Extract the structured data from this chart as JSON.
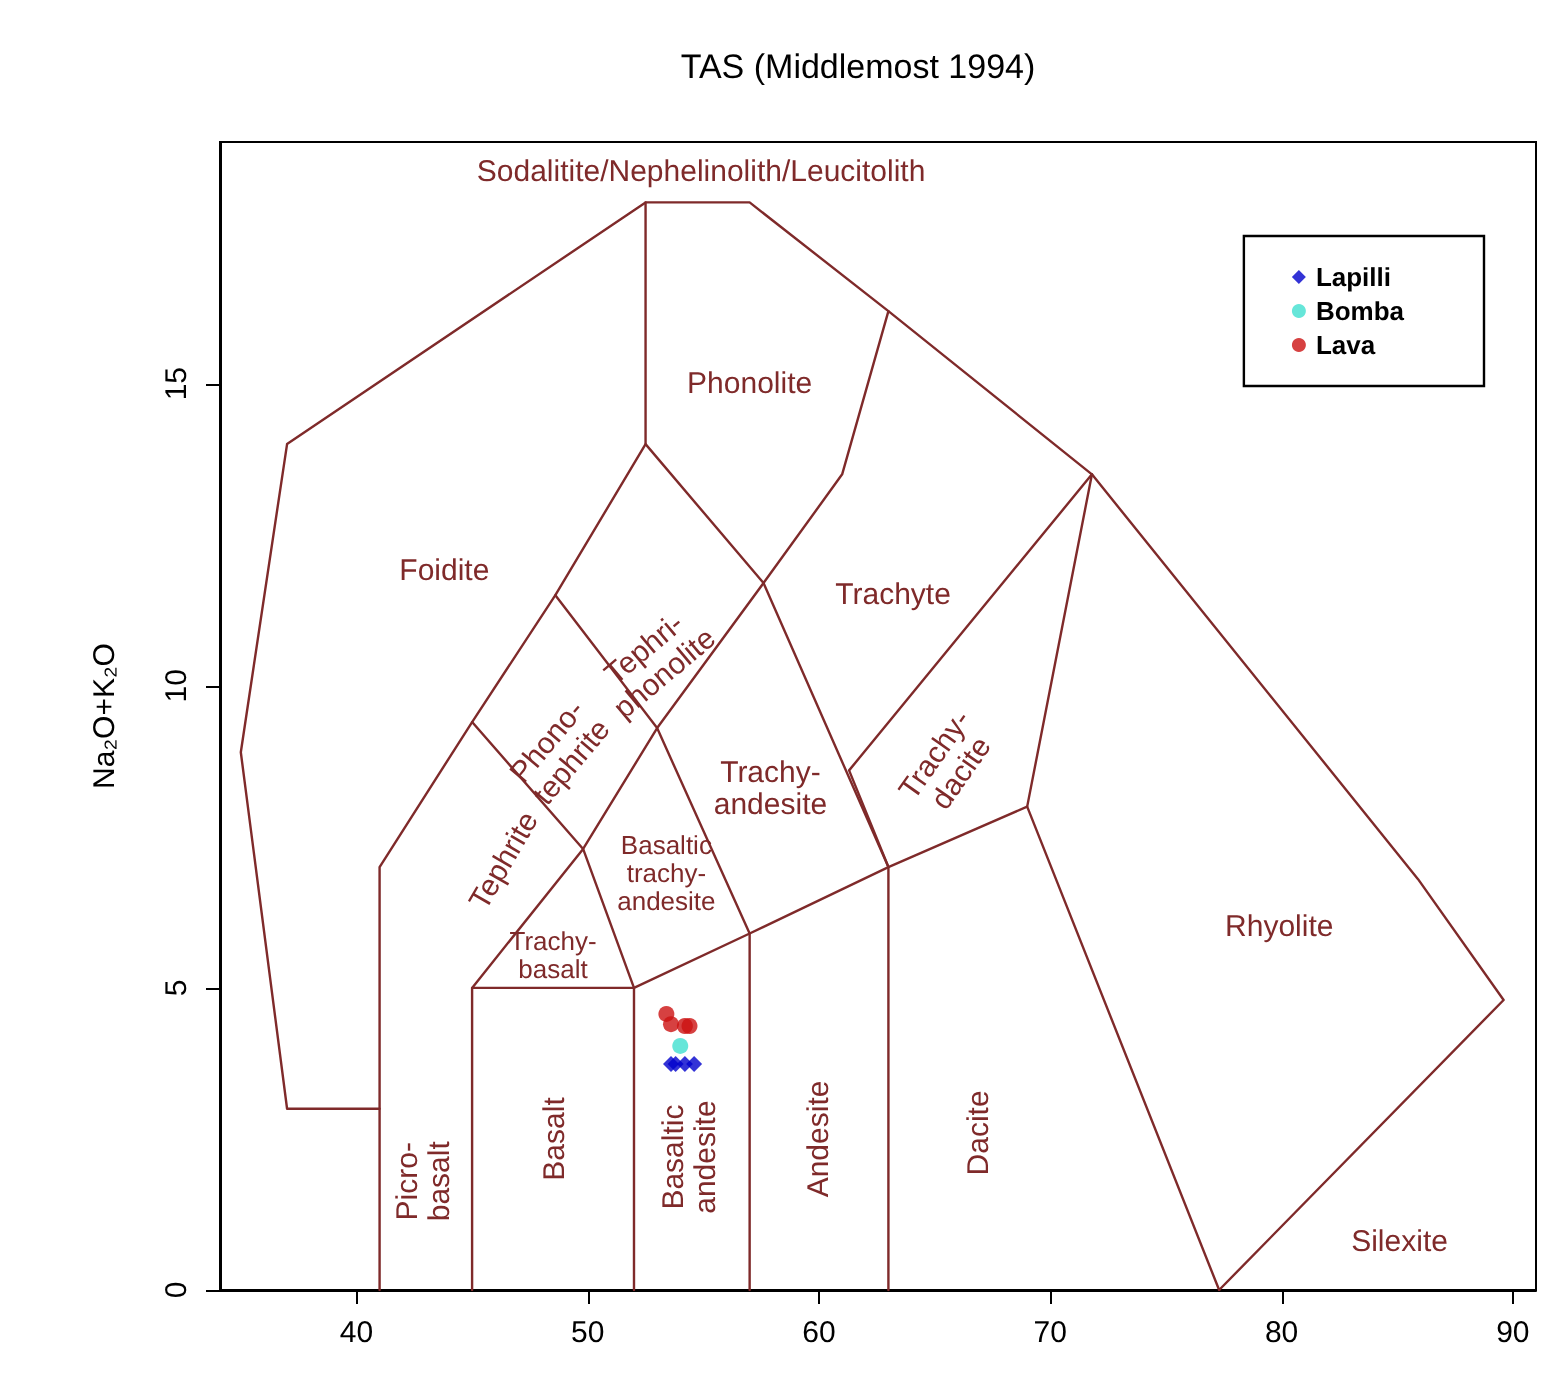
{
  "chart_data": {
    "type": "scatter",
    "title": "TAS (Middlemost 1994)",
    "ylabel": "Na₂O+K₂O",
    "xlim": [
      34.1,
      91
    ],
    "ylim": [
      0,
      19
    ],
    "xticks": [
      40,
      50,
      60,
      70,
      80,
      90
    ],
    "yticks": [
      0,
      5,
      10,
      15
    ],
    "grid": false,
    "legend": "top right",
    "series": [
      {
        "type": "line",
        "color": "#7f2a2a",
        "marker": "none",
        "line_style": "solid",
        "x": [
          41,
          37,
          35,
          37,
          52.5,
          57,
          63,
          71.8,
          85.9,
          89.6,
          77.3
        ],
        "values": [
          3,
          3,
          8.9,
          14,
          18,
          18,
          16.2,
          13.5,
          6.8,
          4.8,
          0
        ]
      },
      {
        "type": "line",
        "color": "#7f2a2a",
        "marker": "none",
        "line_style": "solid",
        "x": [
          52.5,
          52.5,
          48.6,
          45,
          41,
          41
        ],
        "values": [
          18,
          14,
          11.5,
          9.4,
          7,
          0
        ]
      },
      {
        "type": "line",
        "color": "#7f2a2a",
        "marker": "none",
        "line_style": "solid",
        "x": [
          52.5,
          57.6,
          61,
          63
        ],
        "values": [
          14,
          11.7,
          13.5,
          16.2
        ]
      },
      {
        "type": "line",
        "color": "#7f2a2a",
        "marker": "none",
        "line_style": "solid",
        "x": [
          48.6,
          53,
          57.6
        ],
        "values": [
          11.5,
          9.3,
          11.7
        ]
      },
      {
        "type": "line",
        "color": "#7f2a2a",
        "marker": "none",
        "line_style": "solid",
        "x": [
          45,
          49.8,
          53,
          57,
          57
        ],
        "values": [
          9.4,
          7.3,
          9.3,
          5.9,
          0
        ]
      },
      {
        "type": "line",
        "color": "#7f2a2a",
        "marker": "none",
        "line_style": "solid",
        "x": [
          45,
          45,
          49.8,
          52,
          52
        ],
        "values": [
          0,
          5,
          7.3,
          5,
          0
        ]
      },
      {
        "type": "line",
        "color": "#7f2a2a",
        "marker": "none",
        "line_style": "solid",
        "x": [
          45,
          52,
          57,
          63,
          69,
          77.3
        ],
        "values": [
          5,
          5,
          5.9,
          7,
          8,
          0
        ]
      },
      {
        "type": "line",
        "color": "#7f2a2a",
        "marker": "none",
        "line_style": "solid",
        "x": [
          63,
          63,
          57.6
        ],
        "values": [
          0,
          7,
          11.7
        ]
      },
      {
        "type": "line",
        "color": "#7f2a2a",
        "marker": "none",
        "line_style": "solid",
        "x": [
          63,
          61.3,
          71.8
        ],
        "values": [
          7,
          8.6,
          13.5
        ]
      },
      {
        "type": "line",
        "color": "#7f2a2a",
        "marker": "none",
        "line_style": "solid",
        "x": [
          71.8,
          69
        ],
        "values": [
          13.5,
          8
        ]
      },
      {
        "name": "Lapilli",
        "color": "#0000cc",
        "marker": "diamond",
        "x": [
          53.6,
          53.8,
          54.2,
          54.6
        ],
        "values": [
          3.74,
          3.74,
          3.74,
          3.74
        ]
      },
      {
        "name": "Bomba",
        "color": "#40e0d0",
        "marker": "circle",
        "x": [
          54.0
        ],
        "values": [
          4.04
        ]
      },
      {
        "name": "Lava",
        "color": "#cc1111",
        "marker": "circle",
        "x": [
          53.4,
          53.6,
          54.2,
          54.4
        ],
        "values": [
          4.57,
          4.4,
          4.37,
          4.37
        ]
      }
    ],
    "annotations": [
      "Sodalitite/Nephelinolith/Leucitolith",
      "Phonolite",
      "Foidite",
      "Tephri-\nphonolite",
      "Trachyte",
      "Phono-\ntephrite",
      "Trachy-\nandesite",
      "Trachy-\ndacite",
      "Tephrite",
      "Basaltic\ntrachy-\nandesite",
      "Trachy-\nbasalt",
      "Rhyolite",
      "Picro-\nbasalt",
      "Basalt",
      "Basaltic\nandesite",
      "Andesite",
      "Dacite",
      "Silexite"
    ]
  }
}
